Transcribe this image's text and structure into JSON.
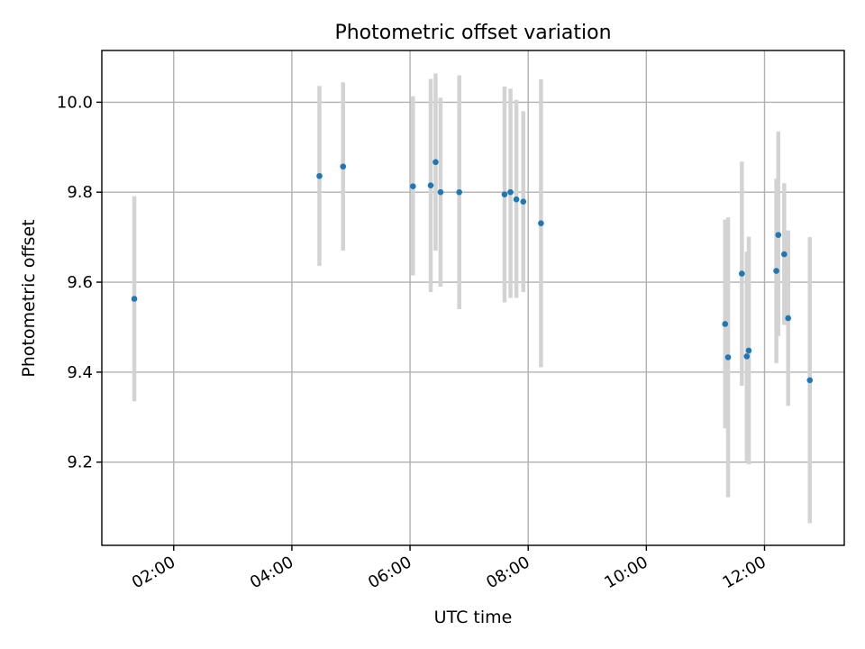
{
  "chart_data": {
    "type": "scatter",
    "title": "Photometric offset variation",
    "xlabel": "UTC time",
    "ylabel": "Photometric offset",
    "x_ticks": [
      "02:00",
      "04:00",
      "06:00",
      "08:00",
      "10:00",
      "12:00"
    ],
    "y_ticks": [
      "9.2",
      "9.4",
      "9.6",
      "9.8",
      "10.0"
    ],
    "xlim": [
      "00:47",
      "13:21"
    ],
    "ylim": [
      9.015,
      10.115
    ],
    "grid": true,
    "point_color": "#1f77b4",
    "errorbar_color": "#d3d3d3",
    "series": [
      {
        "points": [
          {
            "x": "01:20",
            "y": 9.563,
            "ylow": 9.335,
            "yhigh": 9.791
          },
          {
            "x": "04:28",
            "y": 9.836,
            "ylow": 9.636,
            "yhigh": 10.036
          },
          {
            "x": "04:52",
            "y": 9.857,
            "ylow": 9.67,
            "yhigh": 10.044
          },
          {
            "x": "06:03",
            "y": 9.813,
            "ylow": 9.615,
            "yhigh": 10.013
          },
          {
            "x": "06:21",
            "y": 9.815,
            "ylow": 9.578,
            "yhigh": 10.052
          },
          {
            "x": "06:26",
            "y": 9.867,
            "ylow": 9.67,
            "yhigh": 10.064
          },
          {
            "x": "06:31",
            "y": 9.8,
            "ylow": 9.59,
            "yhigh": 10.01
          },
          {
            "x": "06:50",
            "y": 9.8,
            "ylow": 9.54,
            "yhigh": 10.06
          },
          {
            "x": "07:36",
            "y": 9.795,
            "ylow": 9.555,
            "yhigh": 10.035
          },
          {
            "x": "07:42",
            "y": 9.8,
            "ylow": 9.565,
            "yhigh": 10.03
          },
          {
            "x": "07:48",
            "y": 9.784,
            "ylow": 9.565,
            "yhigh": 10.005
          },
          {
            "x": "07:55",
            "y": 9.779,
            "ylow": 9.578,
            "yhigh": 9.98
          },
          {
            "x": "08:13",
            "y": 9.731,
            "ylow": 9.411,
            "yhigh": 10.051
          },
          {
            "x": "11:20",
            "y": 9.507,
            "ylow": 9.275,
            "yhigh": 9.739
          },
          {
            "x": "11:23",
            "y": 9.433,
            "ylow": 9.122,
            "yhigh": 9.744
          },
          {
            "x": "11:37",
            "y": 9.619,
            "ylow": 9.37,
            "yhigh": 9.868
          },
          {
            "x": "11:42",
            "y": 9.435,
            "ylow": 9.202,
            "yhigh": 9.668
          },
          {
            "x": "11:44",
            "y": 9.448,
            "ylow": 9.195,
            "yhigh": 9.701
          },
          {
            "x": "12:12",
            "y": 9.625,
            "ylow": 9.42,
            "yhigh": 9.83
          },
          {
            "x": "12:14",
            "y": 9.705,
            "ylow": 9.48,
            "yhigh": 9.935
          },
          {
            "x": "12:20",
            "y": 9.662,
            "ylow": 9.505,
            "yhigh": 9.82
          },
          {
            "x": "12:24",
            "y": 9.52,
            "ylow": 9.325,
            "yhigh": 9.715
          },
          {
            "x": "12:46",
            "y": 9.382,
            "ylow": 9.064,
            "yhigh": 9.7
          }
        ]
      }
    ]
  }
}
